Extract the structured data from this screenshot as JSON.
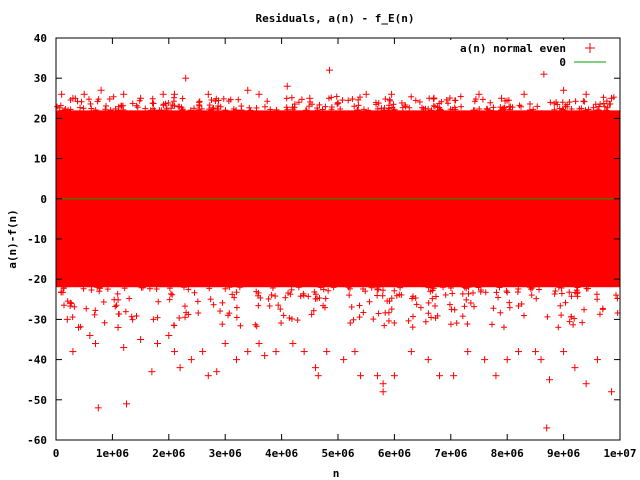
{
  "chart_data": {
    "type": "scatter",
    "title": "Residuals, a(n) - f_E(n)",
    "xlabel": "n",
    "ylabel": "a(n)-f(n)",
    "xlim": [
      0,
      10000000
    ],
    "ylim": [
      -60,
      40
    ],
    "x_ticks": [
      0,
      1000000,
      2000000,
      3000000,
      4000000,
      5000000,
      6000000,
      7000000,
      8000000,
      9000000,
      10000000
    ],
    "x_tick_labels": [
      "0",
      "1e+06",
      "2e+06",
      "3e+06",
      "4e+06",
      "5e+06",
      "6e+06",
      "7e+06",
      "8e+06",
      "9e+06",
      "1e+07"
    ],
    "y_ticks": [
      -60,
      -50,
      -40,
      -30,
      -20,
      -10,
      0,
      10,
      20,
      30,
      40
    ],
    "y_tick_labels": [
      "-60",
      "-50",
      "-40",
      "-30",
      "-20",
      "-10",
      "0",
      "10",
      "20",
      "30",
      "40"
    ],
    "grid": false,
    "legend": "top-right",
    "dense_band": {
      "series_index": 0,
      "x_range": [
        0,
        10000000
      ],
      "y_range": [
        -22,
        22
      ]
    },
    "series": [
      {
        "name": "a(n) normal even",
        "marker": "+",
        "color": "#ff0000",
        "points": [
          [
            100000,
            26
          ],
          [
            300000,
            25
          ],
          [
            500000,
            26
          ],
          [
            800000,
            27
          ],
          [
            1200000,
            26
          ],
          [
            1500000,
            25
          ],
          [
            1900000,
            26
          ],
          [
            2100000,
            26
          ],
          [
            2300000,
            30
          ],
          [
            2700000,
            26
          ],
          [
            3400000,
            27
          ],
          [
            3600000,
            26
          ],
          [
            4100000,
            28
          ],
          [
            4500000,
            25
          ],
          [
            4850000,
            32
          ],
          [
            5500000,
            26
          ],
          [
            5950000,
            26
          ],
          [
            6700000,
            25
          ],
          [
            7500000,
            26
          ],
          [
            7900000,
            25
          ],
          [
            8300000,
            26
          ],
          [
            8650000,
            31
          ],
          [
            9000000,
            27
          ],
          [
            9400000,
            26
          ],
          [
            9850000,
            25
          ],
          [
            200000,
            -30
          ],
          [
            400000,
            -32
          ],
          [
            300000,
            -38
          ],
          [
            600000,
            -34
          ],
          [
            700000,
            -36
          ],
          [
            750000,
            -52
          ],
          [
            1100000,
            -32
          ],
          [
            1200000,
            -37
          ],
          [
            1250000,
            -51
          ],
          [
            1500000,
            -35
          ],
          [
            1700000,
            -43
          ],
          [
            1800000,
            -36
          ],
          [
            2000000,
            -34
          ],
          [
            2100000,
            -38
          ],
          [
            2200000,
            -42
          ],
          [
            2400000,
            -40
          ],
          [
            2600000,
            -38
          ],
          [
            2700000,
            -44
          ],
          [
            2850000,
            -43
          ],
          [
            3000000,
            -36
          ],
          [
            3200000,
            -40
          ],
          [
            3400000,
            -38
          ],
          [
            3600000,
            -36
          ],
          [
            3700000,
            -39
          ],
          [
            3900000,
            -38
          ],
          [
            4200000,
            -36
          ],
          [
            4400000,
            -38
          ],
          [
            4600000,
            -42
          ],
          [
            4650000,
            -44
          ],
          [
            4800000,
            -38
          ],
          [
            5100000,
            -40
          ],
          [
            5300000,
            -38
          ],
          [
            5400000,
            -44
          ],
          [
            5700000,
            -44
          ],
          [
            5800000,
            -46
          ],
          [
            5800000,
            -48
          ],
          [
            6000000,
            -44
          ],
          [
            6300000,
            -38
          ],
          [
            6600000,
            -40
          ],
          [
            6800000,
            -44
          ],
          [
            7050000,
            -44
          ],
          [
            7300000,
            -38
          ],
          [
            7600000,
            -40
          ],
          [
            7800000,
            -44
          ],
          [
            8000000,
            -40
          ],
          [
            8200000,
            -38
          ],
          [
            8500000,
            -38
          ],
          [
            8600000,
            -40
          ],
          [
            8700000,
            -57
          ],
          [
            8750000,
            -45
          ],
          [
            9000000,
            -38
          ],
          [
            9200000,
            -42
          ],
          [
            9400000,
            -46
          ],
          [
            9600000,
            -40
          ],
          [
            9850000,
            -48
          ]
        ]
      },
      {
        "name": "0",
        "type": "line",
        "color": "#00a000",
        "points": [
          [
            0,
            0
          ],
          [
            10000000,
            0
          ]
        ]
      }
    ]
  }
}
